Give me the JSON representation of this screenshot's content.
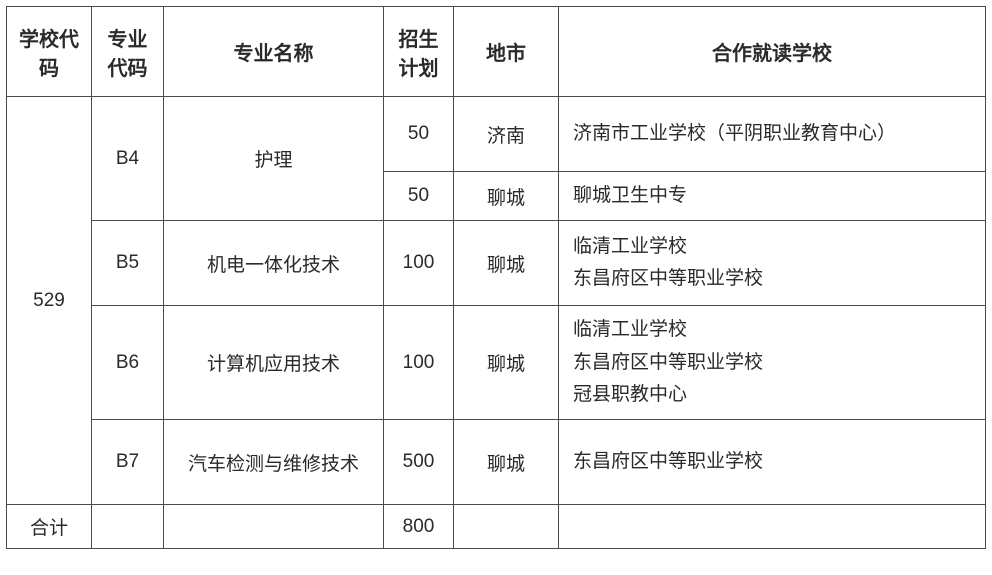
{
  "header": {
    "school_code": "学校代码",
    "major_code": "专业代码",
    "major_name": "专业名称",
    "enroll_plan": "招生计划",
    "city": "地市",
    "partner_school": "合作就读学校"
  },
  "school_code_value": "529",
  "rows": {
    "r1": {
      "major_code": "B4",
      "major_name": "护理",
      "plan": "50",
      "city": "济南",
      "partner": "济南市工业学校（平阴职业教育中心）"
    },
    "r2": {
      "plan": "50",
      "city": "聊城",
      "partner": "聊城卫生中专"
    },
    "r3": {
      "major_code": "B5",
      "major_name": "机电一体化技术",
      "plan": "100",
      "city": "聊城",
      "partner": "临清工业学校\n东昌府区中等职业学校"
    },
    "r4": {
      "major_code": "B6",
      "major_name": "计算机应用技术",
      "plan": "100",
      "city": "聊城",
      "partner": "临清工业学校\n东昌府区中等职业学校\n冠县职教中心"
    },
    "r5": {
      "major_code": "B7",
      "major_name": "汽车检测与维修技术",
      "plan": "500",
      "city": "聊城",
      "partner": "东昌府区中等职业学校"
    }
  },
  "footer": {
    "label": "合计",
    "total": "800"
  },
  "style": {
    "border_color": "#4a4a4a",
    "text_color": "#2a2a2a",
    "background_color": "#ffffff",
    "header_font_size": 20,
    "cell_font_size": 19
  }
}
